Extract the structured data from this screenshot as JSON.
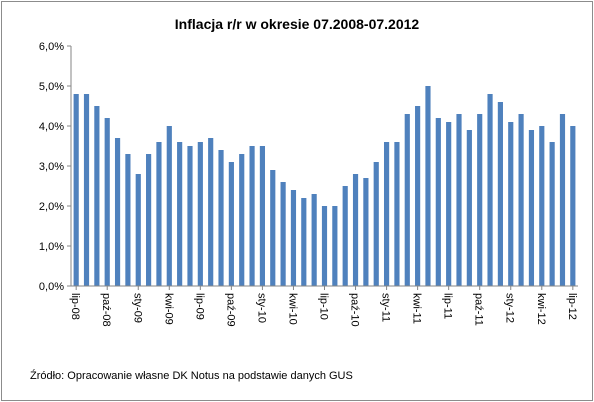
{
  "chart_data": {
    "type": "bar",
    "title": "Inflacja r/r w okresie 07.2008-07.2012",
    "source": "Źródło: Opracowanie własne  DK Notus na podstawie danych GUS",
    "xlabel": "",
    "ylabel": "",
    "ylim": [
      0,
      6
    ],
    "yticks": [
      "0,0%",
      "1,0%",
      "2,0%",
      "3,0%",
      "4,0%",
      "5,0%",
      "6,0%"
    ],
    "grid": false,
    "legend": "none",
    "bar_color": "#4f81bd",
    "categories": [
      "lip-08",
      "sie-08",
      "wrz-08",
      "paź-08",
      "lis-08",
      "gru-08",
      "sty-09",
      "lut-09",
      "mar-09",
      "kwi-09",
      "maj-09",
      "cze-09",
      "lip-09",
      "sie-09",
      "wrz-09",
      "paź-09",
      "lis-09",
      "gru-09",
      "sty-10",
      "lut-10",
      "mar-10",
      "kwi-10",
      "maj-10",
      "cze-10",
      "lip-10",
      "sie-10",
      "wrz-10",
      "paź-10",
      "lis-10",
      "gru-10",
      "sty-11",
      "lut-11",
      "mar-11",
      "kwi-11",
      "maj-11",
      "cze-11",
      "lip-11",
      "sie-11",
      "wrz-11",
      "paź-11",
      "lis-11",
      "gru-11",
      "sty-12",
      "lut-12",
      "mar-12",
      "kwi-12",
      "maj-12",
      "cze-12",
      "lip-12"
    ],
    "visible_tick_labels": [
      "lip-08",
      "paź-08",
      "sty-09",
      "kwi-09",
      "lip-09",
      "paź-09",
      "sty-10",
      "kwi-10",
      "lip-10",
      "paź-10",
      "sty-11",
      "kwi-11",
      "lip-11",
      "paź-11",
      "sty-12",
      "kwi-12",
      "lip-12"
    ],
    "values": [
      4.8,
      4.8,
      4.5,
      4.2,
      3.7,
      3.3,
      2.8,
      3.3,
      3.6,
      4.0,
      3.6,
      3.5,
      3.6,
      3.7,
      3.4,
      3.1,
      3.3,
      3.5,
      3.5,
      2.9,
      2.6,
      2.4,
      2.2,
      2.3,
      2.0,
      2.0,
      2.5,
      2.8,
      2.7,
      3.1,
      3.6,
      3.6,
      4.3,
      4.5,
      5.0,
      4.2,
      4.1,
      4.3,
      3.9,
      4.3,
      4.8,
      4.6,
      4.1,
      4.3,
      3.9,
      4.0,
      3.6,
      4.3,
      4.0
    ]
  }
}
